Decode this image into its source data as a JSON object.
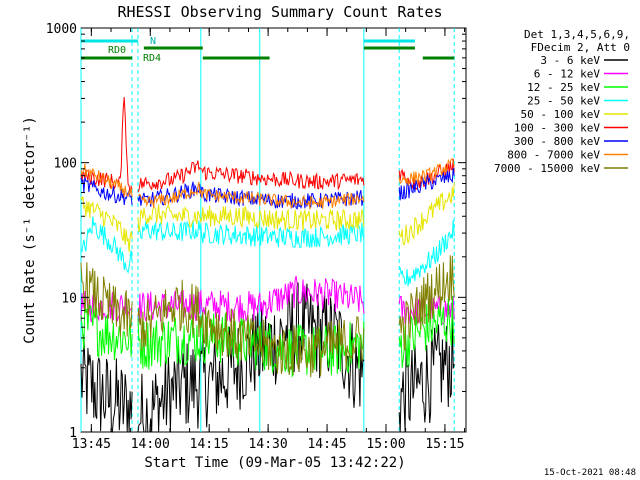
{
  "chart_data": {
    "type": "line",
    "title": "RHESSI Observing Summary Count Rates",
    "xlabel": "Start Time (09-Mar-05 13:42:22)",
    "ylabel": "Count Rate (s⁻¹ detector⁻¹)",
    "yscale": "log",
    "ylim": [
      1,
      1000
    ],
    "xlim_minutes": [
      0,
      98
    ],
    "x_ticks": [
      "13:45",
      "14:00",
      "14:15",
      "14:30",
      "14:45",
      "15:00",
      "15:15"
    ],
    "y_ticks": [
      "1",
      "10",
      "100",
      "1000"
    ],
    "footer": "15-Oct-2021 08:48",
    "legend_header": [
      "Det 1,3,4,5,6,9,",
      "FDecim 2, Att 0"
    ],
    "legend_position": "right",
    "flag_labels": {
      "n": "N",
      "rd0": "RD0",
      "rd4": "RD4"
    },
    "vertical_markers_minutes": [
      0,
      13,
      14.5,
      30.5,
      45.5,
      72,
      81,
      95
    ],
    "marker_dashed": [
      false,
      true,
      true,
      false,
      false,
      false,
      true,
      true
    ],
    "flag_bars": [
      {
        "name": "N",
        "color": "#00e6e6",
        "segments": [
          [
            0,
            14.5
          ],
          [
            72,
            85
          ]
        ]
      },
      {
        "name": "RD0",
        "color": "#008000",
        "segments": [
          [
            16,
            31
          ],
          [
            72,
            85
          ]
        ]
      },
      {
        "name": "RD4",
        "color": "#008000",
        "segments": [
          [
            0,
            13
          ],
          [
            31,
            48
          ],
          [
            87,
            95
          ]
        ]
      }
    ],
    "gaps_minutes": [
      [
        13,
        14.5
      ],
      [
        72,
        81
      ]
    ],
    "series": [
      {
        "name": "3 - 6 keV",
        "color": "#000000",
        "x": [
          0,
          6,
          12,
          16,
          25,
          35,
          45,
          55,
          65,
          70,
          82,
          88,
          95
        ],
        "y": [
          2.5,
          1.8,
          1.5,
          1.3,
          2.2,
          2.5,
          4,
          6,
          5,
          3,
          1.8,
          2.5,
          3.5
        ]
      },
      {
        "name": "6 - 12 keV",
        "color": "#ff00ff",
        "x": [
          0,
          10,
          16,
          30,
          45,
          55,
          63,
          70,
          82,
          95
        ],
        "y": [
          8.5,
          8.7,
          8.5,
          8.8,
          8.5,
          11,
          10.5,
          9.5,
          8,
          8
        ]
      },
      {
        "name": "12 - 25 keV",
        "color": "#00ff00",
        "x": [
          0,
          6,
          12,
          16,
          25,
          35,
          45,
          55,
          65,
          72,
          82,
          88,
          95
        ],
        "y": [
          6.5,
          5.5,
          5,
          4.5,
          5,
          5,
          4.5,
          4,
          4,
          4.5,
          4.5,
          6,
          7
        ]
      },
      {
        "name": "25 - 50 keV",
        "color": "#00ffff",
        "x": [
          0,
          3,
          8,
          12,
          16,
          24,
          30,
          31,
          40,
          50,
          60,
          72,
          82,
          90,
          95
        ],
        "y": [
          20,
          35,
          25,
          17,
          32,
          30,
          32,
          30,
          29,
          28,
          28,
          30,
          13,
          20,
          32
        ]
      },
      {
        "name": "50 - 100 keV",
        "color": "#e6e600",
        "x": [
          0,
          6,
          10,
          12,
          16,
          24,
          30,
          31,
          40,
          50,
          60,
          72,
          82,
          88,
          95
        ],
        "y": [
          50,
          40,
          32,
          25,
          42,
          40,
          40,
          40,
          40,
          38,
          37,
          38,
          28,
          40,
          60
        ]
      },
      {
        "name": "100 - 300 keV",
        "color": "#ff0000",
        "x": [
          0,
          6,
          10,
          11,
          12,
          16,
          24,
          30,
          31,
          40,
          50,
          60,
          72,
          81,
          85,
          90,
          95
        ],
        "y": [
          80,
          75,
          70,
          350,
          65,
          70,
          75,
          95,
          85,
          80,
          75,
          72,
          75,
          85,
          70,
          80,
          95
        ]
      },
      {
        "name": "300 - 800 keV",
        "color": "#0000ff",
        "x": [
          0,
          6,
          12,
          16,
          24,
          30,
          31,
          40,
          50,
          60,
          72,
          82,
          88,
          95
        ],
        "y": [
          70,
          60,
          55,
          52,
          58,
          65,
          58,
          55,
          52,
          52,
          55,
          60,
          70,
          80
        ]
      },
      {
        "name": "800 - 7000 keV",
        "color": "#ff8000",
        "x": [
          0,
          6,
          12,
          16,
          24,
          30,
          31,
          40,
          50,
          60,
          72,
          82,
          88,
          95
        ],
        "y": [
          90,
          75,
          60,
          50,
          55,
          65,
          58,
          55,
          52,
          50,
          55,
          75,
          80,
          98
        ]
      },
      {
        "name": "7000 - 15000 keV",
        "color": "#808000",
        "x": [
          0,
          4,
          8,
          12,
          16,
          24,
          30,
          31,
          40,
          50,
          60,
          72,
          82,
          88,
          95
        ],
        "y": [
          13,
          10,
          8,
          7,
          6,
          9,
          8,
          7,
          5,
          4,
          4,
          5,
          6,
          10,
          15
        ]
      }
    ]
  }
}
